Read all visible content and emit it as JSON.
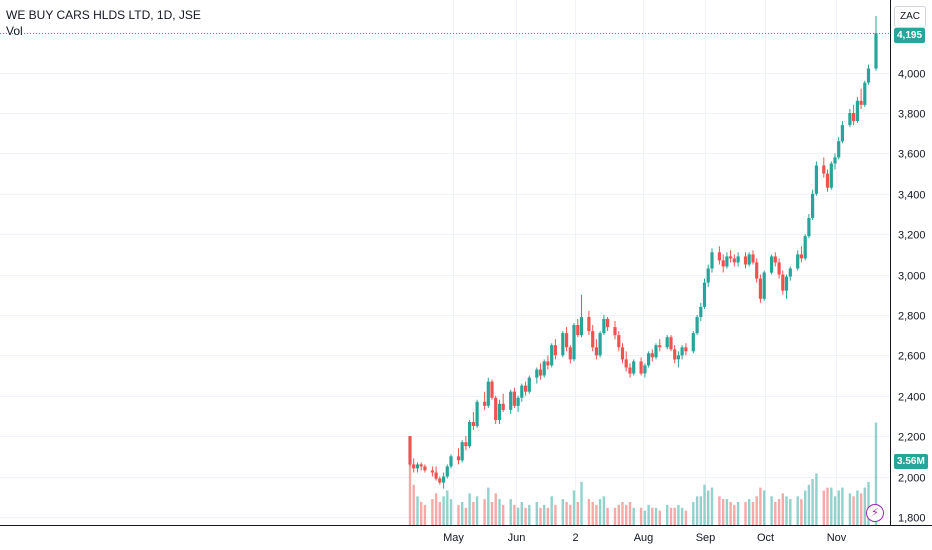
{
  "header": {
    "title": "WE BUY CARS HLDS LTD, 1D, JSE",
    "volume_label": "Vol"
  },
  "toolbar": {
    "currency": "ZAC"
  },
  "price_badge": "4,195",
  "volume_badge": "3.56M",
  "quick_action_glyph": "⚡",
  "colors": {
    "up": "#26a69a",
    "down": "#ef5350",
    "grid": "#f0f3fa",
    "last_price_line": "#26a69a"
  },
  "icons": {
    "quick_action": "lightning-bolt-icon"
  },
  "chart_data": {
    "type": "candlestick",
    "title": "WE BUY CARS HLDS LTD, 1D, JSE",
    "y_axis": {
      "ticks": [
        1800,
        2000,
        2200,
        2400,
        2600,
        2800,
        3000,
        3200,
        3400,
        3600,
        3800,
        4000
      ],
      "tick_labels": [
        "1,800",
        "2,000",
        "2,200",
        "2,400",
        "2,600",
        "2,800",
        "3,000",
        "3,200",
        "3,400",
        "3,600",
        "3,800",
        "4,000"
      ],
      "range": [
        1760,
        4290
      ]
    },
    "x_axis": {
      "tick_labels": [
        "May",
        "Jun",
        "2",
        "Aug",
        "Sep",
        "Oct",
        "Nov"
      ],
      "tick_positions_days": [
        10,
        42,
        70,
        103,
        133,
        163,
        203
      ]
    },
    "last_price": 4195,
    "last_volume": "3.56M",
    "days": 233,
    "candles": [
      [
        0,
        2200,
        2200,
        2050,
        2060,
        2.3
      ],
      [
        1,
        2060,
        2090,
        2020,
        2040,
        1.4
      ],
      [
        2,
        2040,
        2070,
        2020,
        2060,
        1.0
      ],
      [
        3,
        2060,
        2070,
        2030,
        2050,
        0.8
      ],
      [
        4,
        2050,
        2060,
        2020,
        2030,
        0.7
      ],
      [
        6,
        2030,
        2050,
        2000,
        2020,
        0.9
      ],
      [
        7,
        2020,
        2050,
        1980,
        1990,
        1.1
      ],
      [
        8,
        1990,
        2000,
        1960,
        1970,
        0.8
      ],
      [
        9,
        1970,
        2020,
        1940,
        2000,
        1.0
      ],
      [
        10,
        2000,
        2060,
        1990,
        2050,
        1.2
      ],
      [
        11,
        2050,
        2110,
        2040,
        2100,
        0.9
      ],
      [
        13,
        2100,
        2140,
        2060,
        2080,
        0.7
      ],
      [
        14,
        2080,
        2180,
        2070,
        2170,
        0.8
      ],
      [
        15,
        2170,
        2200,
        2130,
        2150,
        0.6
      ],
      [
        16,
        2150,
        2280,
        2140,
        2270,
        1.1
      ],
      [
        17,
        2270,
        2320,
        2230,
        2250,
        0.8
      ],
      [
        18,
        2250,
        2380,
        2240,
        2370,
        1.0
      ],
      [
        20,
        2370,
        2420,
        2330,
        2350,
        0.9
      ],
      [
        21,
        2350,
        2490,
        2340,
        2470,
        1.3
      ],
      [
        22,
        2470,
        2480,
        2380,
        2390,
        0.8
      ],
      [
        23,
        2390,
        2400,
        2260,
        2280,
        1.1
      ],
      [
        24,
        2280,
        2380,
        2260,
        2360,
        0.9
      ],
      [
        25,
        2360,
        2410,
        2320,
        2330,
        0.7
      ],
      [
        27,
        2330,
        2430,
        2310,
        2420,
        0.9
      ],
      [
        28,
        2420,
        2440,
        2340,
        2350,
        0.7
      ],
      [
        29,
        2350,
        2400,
        2320,
        2390,
        0.6
      ],
      [
        30,
        2390,
        2460,
        2370,
        2450,
        0.8
      ],
      [
        31,
        2450,
        2470,
        2400,
        2420,
        0.6
      ],
      [
        32,
        2420,
        2500,
        2410,
        2490,
        0.7
      ],
      [
        34,
        2490,
        2540,
        2460,
        2530,
        0.8
      ],
      [
        35,
        2530,
        2560,
        2480,
        2500,
        0.6
      ],
      [
        36,
        2500,
        2580,
        2490,
        2570,
        0.7
      ],
      [
        37,
        2570,
        2600,
        2530,
        2550,
        0.6
      ],
      [
        38,
        2550,
        2660,
        2540,
        2650,
        1.0
      ],
      [
        39,
        2650,
        2680,
        2580,
        2600,
        0.7
      ],
      [
        41,
        2600,
        2720,
        2590,
        2710,
        0.9
      ],
      [
        42,
        2710,
        2740,
        2620,
        2640,
        0.8
      ],
      [
        43,
        2640,
        2650,
        2560,
        2580,
        0.7
      ],
      [
        44,
        2580,
        2760,
        2570,
        2750,
        1.2
      ],
      [
        45,
        2750,
        2780,
        2690,
        2700,
        0.8
      ],
      [
        46,
        2700,
        2900,
        2690,
        2790,
        1.5
      ],
      [
        48,
        2790,
        2820,
        2700,
        2720,
        0.9
      ],
      [
        49,
        2720,
        2750,
        2620,
        2640,
        0.8
      ],
      [
        50,
        2640,
        2680,
        2580,
        2600,
        0.7
      ],
      [
        51,
        2600,
        2720,
        2590,
        2710,
        0.9
      ],
      [
        52,
        2710,
        2800,
        2700,
        2780,
        1.0
      ],
      [
        53,
        2780,
        2790,
        2720,
        2740,
        0.6
      ],
      [
        55,
        2740,
        2770,
        2680,
        2700,
        0.6
      ],
      [
        56,
        2700,
        2720,
        2620,
        2640,
        0.7
      ],
      [
        57,
        2640,
        2660,
        2560,
        2580,
        0.8
      ],
      [
        58,
        2580,
        2620,
        2520,
        2540,
        0.7
      ],
      [
        59,
        2540,
        2560,
        2490,
        2510,
        0.8
      ],
      [
        60,
        2510,
        2580,
        2500,
        2570,
        0.6
      ],
      [
        62,
        2570,
        2590,
        2500,
        2510,
        0.6
      ],
      [
        63,
        2510,
        2560,
        2490,
        2550,
        0.5
      ],
      [
        64,
        2550,
        2620,
        2540,
        2610,
        0.7
      ],
      [
        65,
        2610,
        2630,
        2570,
        2590,
        0.6
      ],
      [
        66,
        2590,
        2660,
        2580,
        2650,
        0.6
      ],
      [
        67,
        2650,
        2680,
        2620,
        2640,
        0.5
      ],
      [
        69,
        2640,
        2700,
        2630,
        2690,
        0.7
      ],
      [
        70,
        2690,
        2700,
        2620,
        2630,
        0.6
      ],
      [
        71,
        2630,
        2650,
        2560,
        2580,
        0.6
      ],
      [
        72,
        2580,
        2620,
        2540,
        2600,
        0.7
      ],
      [
        73,
        2600,
        2650,
        2580,
        2640,
        0.6
      ],
      [
        74,
        2640,
        2660,
        2600,
        2620,
        0.5
      ],
      [
        76,
        2620,
        2720,
        2610,
        2710,
        0.8
      ],
      [
        77,
        2710,
        2800,
        2700,
        2790,
        1.0
      ],
      [
        78,
        2790,
        2860,
        2770,
        2840,
        1.0
      ],
      [
        79,
        2840,
        2980,
        2830,
        2960,
        1.4
      ],
      [
        80,
        2960,
        3050,
        2940,
        3030,
        1.2
      ],
      [
        81,
        3030,
        3130,
        3010,
        3110,
        1.3
      ],
      [
        83,
        3110,
        3140,
        3050,
        3070,
        1.0
      ],
      [
        84,
        3070,
        3100,
        3010,
        3040,
        0.9
      ],
      [
        85,
        3040,
        3110,
        3030,
        3090,
        0.9
      ],
      [
        86,
        3090,
        3120,
        3060,
        3080,
        0.8
      ],
      [
        87,
        3080,
        3100,
        3040,
        3060,
        0.7
      ],
      [
        88,
        3060,
        3110,
        3040,
        3090,
        0.8
      ],
      [
        90,
        3090,
        3110,
        3030,
        3050,
        0.8
      ],
      [
        91,
        3050,
        3110,
        3040,
        3100,
        0.9
      ],
      [
        92,
        3100,
        3120,
        3050,
        3060,
        0.8
      ],
      [
        93,
        3060,
        3080,
        2960,
        2980,
        1.0
      ],
      [
        94,
        2980,
        3000,
        2860,
        2880,
        1.3
      ],
      [
        95,
        2880,
        3020,
        2870,
        3010,
        1.2
      ],
      [
        97,
        3010,
        3100,
        3000,
        3090,
        1.0
      ],
      [
        98,
        3090,
        3110,
        3040,
        3060,
        0.8
      ],
      [
        99,
        3060,
        3080,
        2980,
        3000,
        0.9
      ],
      [
        100,
        3000,
        3020,
        2900,
        2920,
        1.1
      ],
      [
        101,
        2920,
        3000,
        2880,
        2990,
        1.0
      ],
      [
        102,
        2990,
        3040,
        2970,
        3030,
        0.9
      ],
      [
        104,
        3030,
        3120,
        3020,
        3100,
        1.0
      ],
      [
        105,
        3100,
        3140,
        3060,
        3080,
        0.9
      ],
      [
        106,
        3080,
        3200,
        3070,
        3190,
        1.2
      ],
      [
        107,
        3190,
        3300,
        3180,
        3280,
        1.4
      ],
      [
        108,
        3280,
        3420,
        3270,
        3400,
        1.6
      ],
      [
        109,
        3400,
        3560,
        3390,
        3540,
        1.8
      ],
      [
        111,
        3540,
        3580,
        3480,
        3500,
        1.2
      ],
      [
        112,
        3500,
        3520,
        3410,
        3430,
        1.3
      ],
      [
        113,
        3430,
        3560,
        3420,
        3550,
        1.3
      ],
      [
        114,
        3550,
        3600,
        3520,
        3580,
        1.0
      ],
      [
        115,
        3580,
        3680,
        3570,
        3660,
        1.2
      ],
      [
        116,
        3660,
        3760,
        3650,
        3740,
        1.3
      ],
      [
        118,
        3740,
        3820,
        3730,
        3800,
        1.1
      ],
      [
        119,
        3800,
        3840,
        3740,
        3760,
        1.0
      ],
      [
        120,
        3760,
        3880,
        3750,
        3860,
        1.2
      ],
      [
        121,
        3860,
        3920,
        3820,
        3840,
        1.1
      ],
      [
        122,
        3840,
        3960,
        3830,
        3950,
        1.3
      ],
      [
        123,
        3950,
        4040,
        3940,
        4020,
        1.5
      ],
      [
        125,
        4020,
        4280,
        4010,
        4195,
        3.56
      ]
    ]
  }
}
